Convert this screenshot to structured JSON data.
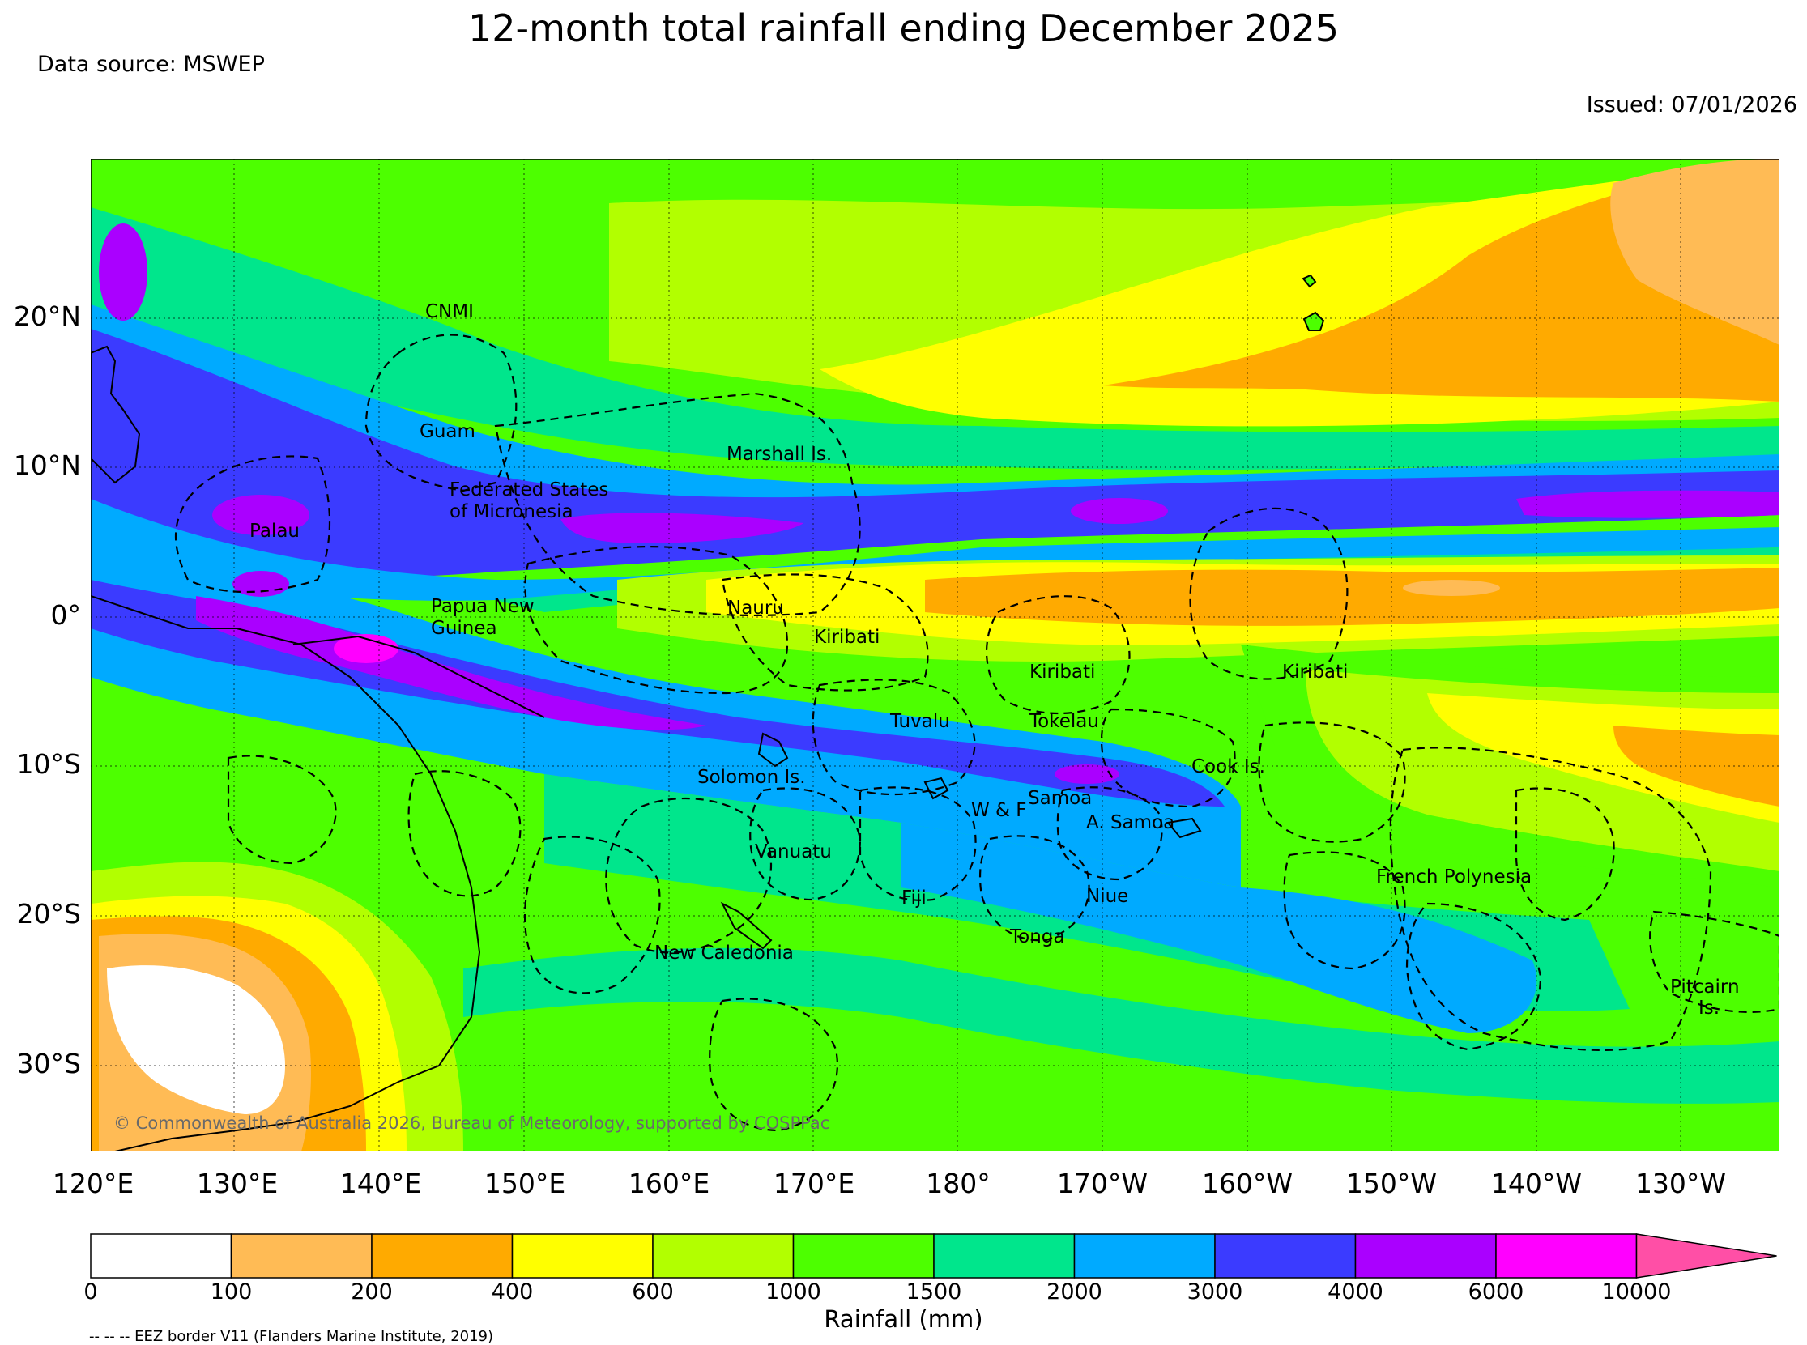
{
  "title": "12-month total rainfall ending December 2025",
  "source": "Data source: MSWEP",
  "issued": "Issued: 07/01/2026",
  "copyright": "© Commonwealth of Australia 2026, Bureau of Meteorology, supported by COSPPac",
  "eez_note": "-- -- -- EEZ border V11 (Flanders Marine Institute, 2019)",
  "lat_labels": [
    "20°N",
    "10°N",
    "0°",
    "10°S",
    "20°S",
    "30°S"
  ],
  "lon_labels": [
    "120°E",
    "130°E",
    "140°E",
    "150°E",
    "160°E",
    "170°E",
    "180°",
    "170°W",
    "160°W",
    "150°W",
    "140°W",
    "130°W"
  ],
  "colorbar": {
    "label": "Rainfall (mm)",
    "ticks": [
      "0",
      "100",
      "200",
      "400",
      "600",
      "1000",
      "1500",
      "2000",
      "3000",
      "4000",
      "6000",
      "10000"
    ],
    "colors": [
      "#ffffff",
      "#ffbb55",
      "#ffaa00",
      "#ffff00",
      "#b2ff00",
      "#4dff00",
      "#00e68c",
      "#00aaff",
      "#3b3bff",
      "#aa00ff",
      "#ff00ff"
    ],
    "extend_color": "#ff4fa6"
  },
  "places": [
    {
      "name": "CNMI"
    },
    {
      "name": "Guam"
    },
    {
      "name": "Marshall Is."
    },
    {
      "name": "Federated States"
    },
    {
      "name": "of Micronesia"
    },
    {
      "name": "Palau"
    },
    {
      "name": "Papua New"
    },
    {
      "name": "Guinea"
    },
    {
      "name": "Nauru"
    },
    {
      "name": "Kiribati"
    },
    {
      "name": "Kiribati"
    },
    {
      "name": "Kiribati"
    },
    {
      "name": "Tuvalu"
    },
    {
      "name": "Tokelau"
    },
    {
      "name": "Solomon Is."
    },
    {
      "name": "Cook Is."
    },
    {
      "name": "Samoa"
    },
    {
      "name": "W & F"
    },
    {
      "name": "A. Samoa"
    },
    {
      "name": "Vanuatu"
    },
    {
      "name": "Fiji"
    },
    {
      "name": "Niue"
    },
    {
      "name": "French Polynesia"
    },
    {
      "name": "Tonga"
    },
    {
      "name": "New Caledonia"
    },
    {
      "name": "Pitcairn"
    },
    {
      "name": "Is."
    }
  ]
}
